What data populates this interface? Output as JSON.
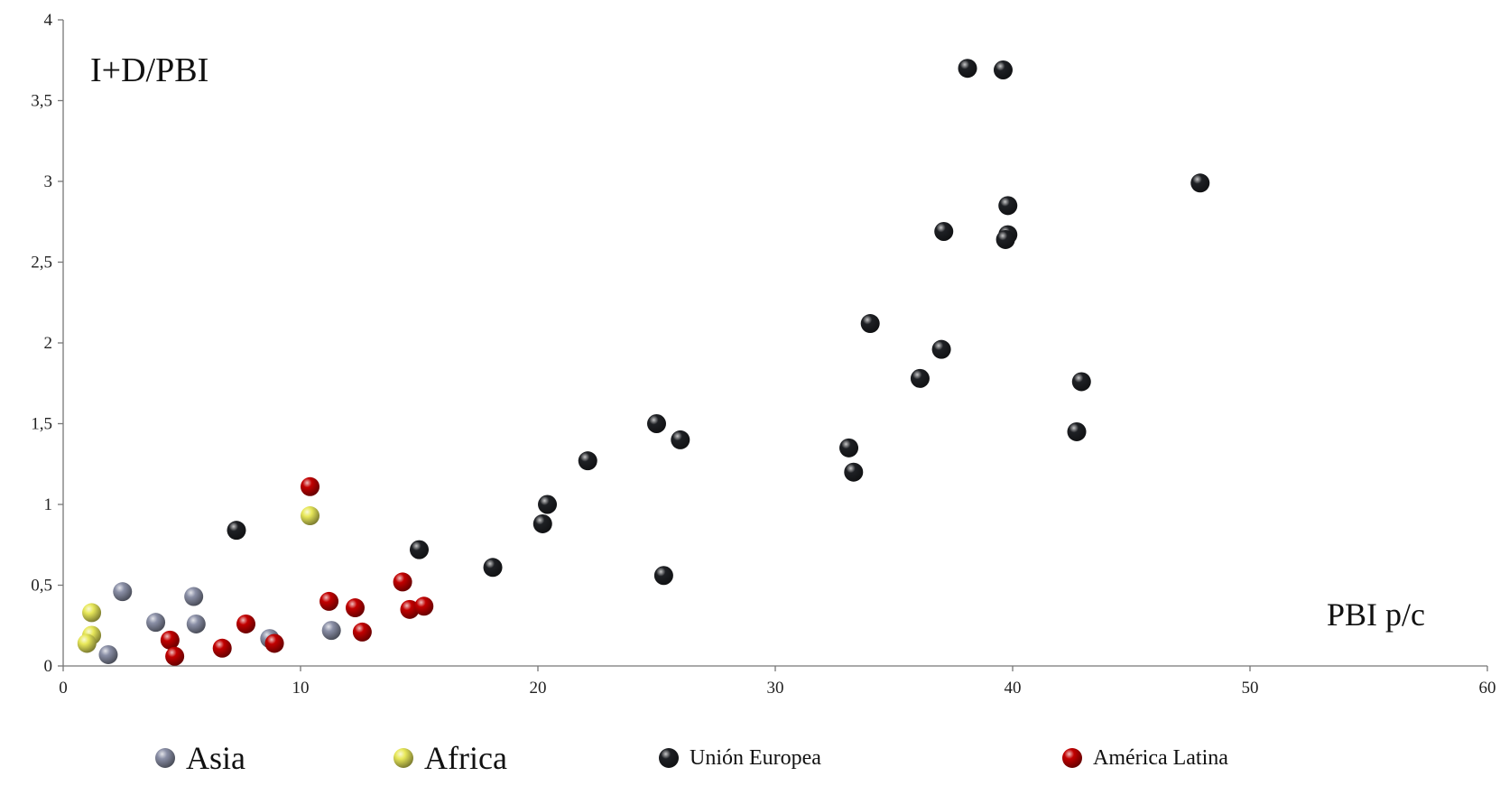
{
  "chart_data": {
    "type": "scatter",
    "ylabel": "I+D/PBI",
    "xlabel": "PBI p/c",
    "xlim": [
      0,
      60
    ],
    "ylim": [
      0,
      4
    ],
    "x_ticks": [
      "0",
      "10",
      "20",
      "30",
      "40",
      "50",
      "60"
    ],
    "y_ticks": [
      "0",
      "0,5",
      "1",
      "1,5",
      "2",
      "2,5",
      "3",
      "3,5",
      "4"
    ],
    "grid": false,
    "legend_position": "bottom",
    "series": [
      {
        "name": "Asia",
        "color": "#8a8fa6",
        "points": [
          [
            2.5,
            0.46
          ],
          [
            1.9,
            0.07
          ],
          [
            3.9,
            0.27
          ],
          [
            5.5,
            0.43
          ],
          [
            5.6,
            0.26
          ],
          [
            8.7,
            0.17
          ],
          [
            11.3,
            0.22
          ]
        ]
      },
      {
        "name": "Africa",
        "color": "#e8e85a",
        "points": [
          [
            1.2,
            0.33
          ],
          [
            1.2,
            0.19
          ],
          [
            1.0,
            0.14
          ],
          [
            10.4,
            0.93
          ]
        ]
      },
      {
        "name": "Unión Europea",
        "color": "#1e2024",
        "points": [
          [
            7.3,
            0.84
          ],
          [
            15.0,
            0.72
          ],
          [
            18.1,
            0.61
          ],
          [
            20.2,
            0.88
          ],
          [
            20.4,
            1.0
          ],
          [
            22.1,
            1.27
          ],
          [
            25.0,
            1.5
          ],
          [
            25.3,
            0.56
          ],
          [
            26.0,
            1.4
          ],
          [
            33.1,
            1.35
          ],
          [
            33.3,
            1.2
          ],
          [
            34.0,
            2.12
          ],
          [
            36.1,
            1.78
          ],
          [
            37.0,
            1.96
          ],
          [
            37.1,
            2.69
          ],
          [
            38.1,
            3.7
          ],
          [
            39.6,
            3.69
          ],
          [
            39.8,
            2.85
          ],
          [
            39.8,
            2.67
          ],
          [
            39.7,
            2.64
          ],
          [
            42.7,
            1.45
          ],
          [
            42.9,
            1.76
          ],
          [
            47.9,
            2.99
          ]
        ]
      },
      {
        "name": "América Latina",
        "color": "#c20000",
        "points": [
          [
            4.5,
            0.16
          ],
          [
            4.7,
            0.06
          ],
          [
            6.7,
            0.11
          ],
          [
            7.7,
            0.26
          ],
          [
            8.9,
            0.14
          ],
          [
            10.4,
            1.11
          ],
          [
            11.2,
            0.4
          ],
          [
            12.3,
            0.36
          ],
          [
            12.6,
            0.21
          ],
          [
            14.3,
            0.52
          ],
          [
            14.6,
            0.35
          ],
          [
            15.2,
            0.37
          ]
        ]
      }
    ]
  }
}
